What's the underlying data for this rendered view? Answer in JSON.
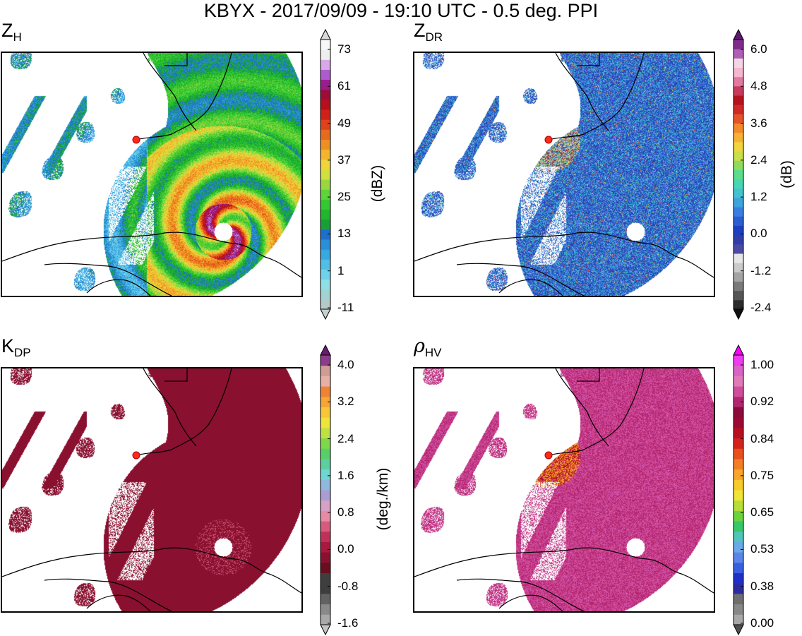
{
  "figure": {
    "suptitle": "KBYX - 2017/09/09 - 19:10 UTC - 0.5 deg. PPI"
  },
  "chart_data": [
    {
      "type": "heatmap",
      "title_main": "Z",
      "title_sub": "H",
      "colorbar_label": "(dBZ)",
      "ticks": [
        "73",
        "61",
        "49",
        "37",
        "25",
        "13",
        "1",
        "-11"
      ],
      "vmin": -17,
      "vmax": 79,
      "extend": "both",
      "colors": [
        "#b7c8c8",
        "#a3d2d2",
        "#8fdfe6",
        "#6fd2ec",
        "#4fbfe8",
        "#37a8e0",
        "#2a8fd8",
        "#1e6fcc",
        "#18a038",
        "#1fb82a",
        "#33c830",
        "#5ed33a",
        "#98d83e",
        "#cfe03f",
        "#f0d43a",
        "#f3b52c",
        "#ef8f22",
        "#e86a1e",
        "#e0421c",
        "#d02018",
        "#b80f1c",
        "#9e0d3a",
        "#9a1c8e",
        "#b05ad0",
        "#d9a8e8",
        "#eeeeee",
        "#f7f7f7"
      ],
      "colors_extend": [
        "#c8cfcf",
        "#d8d8d8"
      ]
    },
    {
      "type": "heatmap",
      "title_main": "Z",
      "title_sub": "DR",
      "colorbar_label": "(dB)",
      "ticks": [
        "6.0",
        "4.8",
        "3.6",
        "2.4",
        "1.2",
        "0.0",
        "-1.2",
        "-2.4"
      ],
      "vmin": -2.4,
      "vmax": 6.8,
      "extend": "both",
      "colors": [
        "#2b2b2b",
        "#555555",
        "#7a7a7a",
        "#a3a3a3",
        "#cacaca",
        "#e6e6e6",
        "#4b4aa5",
        "#2f3ea8",
        "#1e3fbf",
        "#2a5ed1",
        "#3a7fe0",
        "#3ea4de",
        "#44c3cf",
        "#48d6b5",
        "#5ddc8b",
        "#8fdb5b",
        "#c9de4b",
        "#f1d53d",
        "#f7b234",
        "#f28a2c",
        "#e5532a",
        "#cf2a27",
        "#b5141f",
        "#c83a5a",
        "#e27aa0",
        "#f5b6cf",
        "#f2d6e6",
        "#b05fb3",
        "#7f2c8c"
      ],
      "colors_extend": [
        "#111111",
        "#5e1870"
      ]
    },
    {
      "type": "heatmap",
      "title_main": "K",
      "title_sub": "DP",
      "colorbar_label": "(deg./km)",
      "ticks": [
        "4.0",
        "3.2",
        "2.4",
        "1.6",
        "0.8",
        "0.0",
        "-0.8",
        "-1.6"
      ],
      "vmin": -1.6,
      "vmax": 4.6,
      "extend": "both",
      "colors": [
        "#a9a9a9",
        "#8a8a8a",
        "#626262",
        "#3e3e3e",
        "#3f3f3f",
        "#6a0d1f",
        "#8a1030",
        "#a8183f",
        "#c2305a",
        "#d85b7e",
        "#e889a8",
        "#d7a0c6",
        "#a99ed3",
        "#8fb9dc",
        "#6fd6d2",
        "#5ccfa0",
        "#58d06a",
        "#7fd84a",
        "#bfe142",
        "#eee43c",
        "#f7c737",
        "#f7a534",
        "#f28232",
        "#e8b0a4",
        "#cf9d94",
        "#8d3b8a"
      ],
      "colors_extend": [
        "#c4c4c4",
        "#6b1a72"
      ]
    },
    {
      "type": "heatmap",
      "title_main": "ρ",
      "title_sub": "HV",
      "colorbar_label": "",
      "ticks": [
        "1.00",
        "0.92",
        "0.84",
        "0.75",
        "0.65",
        "0.53",
        "0.38",
        "0.00"
      ],
      "vmin": 0.0,
      "vmax": 1.05,
      "extend": "both",
      "colors": [
        "#a8a8a8",
        "#888888",
        "#6f6f6f",
        "#2c2ca0",
        "#1f2fc8",
        "#3a5ee0",
        "#5b85e8",
        "#6aa8e6",
        "#4fc6b8",
        "#38c86a",
        "#6bd33c",
        "#b7de38",
        "#f0e534",
        "#f8ca2e",
        "#f8a529",
        "#f27f25",
        "#ea4f1f",
        "#d4221c",
        "#b80f1f",
        "#9b0a35",
        "#8a0c3a",
        "#b4266f",
        "#d04d9c",
        "#e07bb8",
        "#d963c8",
        "#ee3bee"
      ],
      "colors_extend": [
        "#505050",
        "#ff00ff"
      ]
    }
  ]
}
